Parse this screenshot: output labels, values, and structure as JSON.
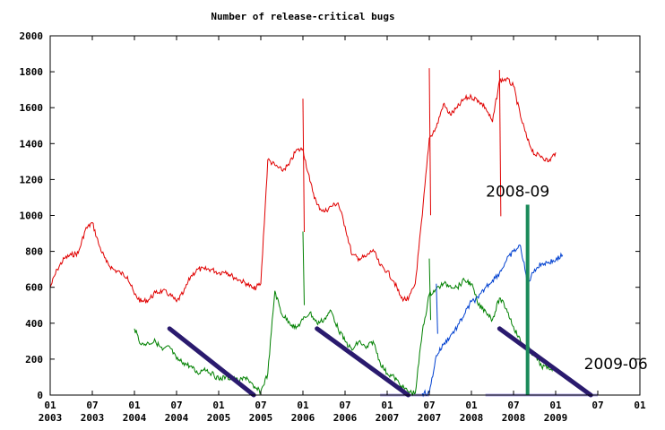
{
  "chart_data": {
    "type": "line",
    "title": "Number of release-critical bugs",
    "ylim": [
      0,
      2000
    ],
    "yticks": [
      0,
      200,
      400,
      600,
      800,
      1000,
      1200,
      1400,
      1600,
      1800,
      2000
    ],
    "xlim": [
      "2003-01",
      "2010-01"
    ],
    "xticks": [
      {
        "month": "01",
        "year": "2003",
        "date": "2003-01"
      },
      {
        "month": "07",
        "year": "2003",
        "date": "2003-07"
      },
      {
        "month": "01",
        "year": "2004",
        "date": "2004-01"
      },
      {
        "month": "07",
        "year": "2004",
        "date": "2004-07"
      },
      {
        "month": "01",
        "year": "2005",
        "date": "2005-01"
      },
      {
        "month": "07",
        "year": "2005",
        "date": "2005-07"
      },
      {
        "month": "01",
        "year": "2006",
        "date": "2006-01"
      },
      {
        "month": "07",
        "year": "2006",
        "date": "2006-07"
      },
      {
        "month": "01",
        "year": "2007",
        "date": "2007-01"
      },
      {
        "month": "07",
        "year": "2007",
        "date": "2007-07"
      },
      {
        "month": "01",
        "year": "2008",
        "date": "2008-01"
      },
      {
        "month": "07",
        "year": "2008",
        "date": "2008-07"
      },
      {
        "month": "01",
        "year": "2009",
        "date": "2009-01"
      },
      {
        "month": "07",
        "year": "",
        "date": "2009-07"
      },
      {
        "month": "01",
        "year": "",
        "date": "2010-01"
      }
    ],
    "grid": false,
    "series": [
      {
        "color": "#e00000",
        "points": [
          [
            "2003-01",
            600
          ],
          [
            "2003-02",
            700
          ],
          [
            "2003-03",
            760
          ],
          [
            "2003-04",
            780
          ],
          [
            "2003-05",
            790
          ],
          [
            "2003-06",
            920
          ],
          [
            "2003-07",
            960
          ],
          [
            "2003-08",
            830
          ],
          [
            "2003-09",
            740
          ],
          [
            "2003-10",
            700
          ],
          [
            "2003-11",
            680
          ],
          [
            "2003-12",
            660
          ],
          [
            "2004-01",
            560
          ],
          [
            "2004-02",
            520
          ],
          [
            "2004-03",
            530
          ],
          [
            "2004-04",
            570
          ],
          [
            "2004-05",
            580
          ],
          [
            "2004-06",
            560
          ],
          [
            "2004-07",
            520
          ],
          [
            "2004-08",
            570
          ],
          [
            "2004-09",
            660
          ],
          [
            "2004-10",
            700
          ],
          [
            "2004-11",
            700
          ],
          [
            "2004-12",
            700
          ],
          [
            "2005-01",
            680
          ],
          [
            "2005-02",
            690
          ],
          [
            "2005-03",
            660
          ],
          [
            "2005-04",
            640
          ],
          [
            "2005-05",
            620
          ],
          [
            "2005-06",
            590
          ],
          [
            "2005-07",
            620
          ],
          [
            "2005-08",
            1310
          ],
          [
            "2005-09",
            1280
          ],
          [
            "2005-10",
            1250
          ],
          [
            "2005-11",
            1280
          ],
          [
            "2005-12",
            1360
          ],
          [
            "2006-01",
            1370
          ],
          [
            "2006-02",
            1190
          ],
          [
            "2006-03",
            1060
          ],
          [
            "2006-04",
            1020
          ],
          [
            "2006-05",
            1050
          ],
          [
            "2006-06",
            1070
          ],
          [
            "2006-07",
            940
          ],
          [
            "2006-08",
            780
          ],
          [
            "2006-09",
            760
          ],
          [
            "2006-10",
            770
          ],
          [
            "2006-11",
            810
          ],
          [
            "2006-12",
            720
          ],
          [
            "2007-01",
            690
          ],
          [
            "2007-02",
            630
          ],
          [
            "2007-03",
            540
          ],
          [
            "2007-04",
            530
          ],
          [
            "2007-05",
            620
          ],
          [
            "2007-06",
            1000
          ],
          [
            "2007-07",
            1430
          ],
          [
            "2007-08",
            1490
          ],
          [
            "2007-09",
            1620
          ],
          [
            "2007-10",
            1560
          ],
          [
            "2007-11",
            1600
          ],
          [
            "2007-12",
            1650
          ],
          [
            "2008-01",
            1660
          ],
          [
            "2008-02",
            1640
          ],
          [
            "2008-03",
            1600
          ],
          [
            "2008-04",
            1520
          ],
          [
            "2008-05",
            1750
          ],
          [
            "2008-06",
            1760
          ],
          [
            "2008-07",
            1720
          ],
          [
            "2008-08",
            1550
          ],
          [
            "2008-09",
            1420
          ],
          [
            "2008-10",
            1340
          ],
          [
            "2008-11",
            1330
          ],
          [
            "2008-12",
            1300
          ],
          [
            "2009-01",
            1350
          ]
        ],
        "spikes": [
          [
            "2006-01",
            1650
          ],
          [
            "2007-07",
            1820
          ],
          [
            "2008-05",
            1810
          ]
        ]
      },
      {
        "color": "#008000",
        "points": [
          [
            "2004-01",
            370
          ],
          [
            "2004-02",
            280
          ],
          [
            "2004-03",
            290
          ],
          [
            "2004-04",
            300
          ],
          [
            "2004-05",
            250
          ],
          [
            "2004-06",
            270
          ],
          [
            "2004-07",
            200
          ],
          [
            "2004-08",
            180
          ],
          [
            "2004-09",
            160
          ],
          [
            "2004-10",
            120
          ],
          [
            "2004-11",
            150
          ],
          [
            "2004-12",
            120
          ],
          [
            "2005-01",
            90
          ],
          [
            "2005-02",
            100
          ],
          [
            "2005-03",
            90
          ],
          [
            "2005-04",
            80
          ],
          [
            "2005-05",
            100
          ],
          [
            "2005-06",
            40
          ],
          [
            "2005-07",
            20
          ],
          [
            "2005-08",
            120
          ],
          [
            "2005-09",
            580
          ],
          [
            "2005-10",
            450
          ],
          [
            "2005-11",
            410
          ],
          [
            "2005-12",
            370
          ],
          [
            "2006-01",
            420
          ],
          [
            "2006-02",
            460
          ],
          [
            "2006-03",
            400
          ],
          [
            "2006-04",
            420
          ],
          [
            "2006-05",
            470
          ],
          [
            "2006-06",
            370
          ],
          [
            "2006-07",
            300
          ],
          [
            "2006-08",
            250
          ],
          [
            "2006-09",
            300
          ],
          [
            "2006-10",
            260
          ],
          [
            "2006-11",
            300
          ],
          [
            "2006-12",
            180
          ],
          [
            "2007-01",
            120
          ],
          [
            "2007-02",
            100
          ],
          [
            "2007-03",
            50
          ],
          [
            "2007-04",
            20
          ],
          [
            "2007-05",
            10
          ],
          [
            "2007-06",
            350
          ],
          [
            "2007-07",
            560
          ],
          [
            "2007-08",
            590
          ],
          [
            "2007-09",
            620
          ],
          [
            "2007-10",
            610
          ],
          [
            "2007-11",
            600
          ],
          [
            "2007-12",
            640
          ],
          [
            "2008-01",
            620
          ],
          [
            "2008-02",
            500
          ],
          [
            "2008-03",
            470
          ],
          [
            "2008-04",
            420
          ],
          [
            "2008-05",
            540
          ],
          [
            "2008-06",
            480
          ],
          [
            "2008-07",
            380
          ],
          [
            "2008-08",
            300
          ],
          [
            "2008-09",
            260
          ],
          [
            "2008-10",
            220
          ],
          [
            "2008-11",
            160
          ],
          [
            "2008-12",
            150
          ],
          [
            "2009-01",
            150
          ]
        ],
        "spikes": [
          [
            "2006-01",
            910
          ],
          [
            "2007-07",
            760
          ]
        ]
      },
      {
        "color": "#0040d0",
        "points": [
          [
            "2007-06",
            10
          ],
          [
            "2007-07",
            10
          ],
          [
            "2007-08",
            220
          ],
          [
            "2007-09",
            280
          ],
          [
            "2007-10",
            330
          ],
          [
            "2007-11",
            380
          ],
          [
            "2007-12",
            450
          ],
          [
            "2008-01",
            520
          ],
          [
            "2008-02",
            540
          ],
          [
            "2008-03",
            600
          ],
          [
            "2008-04",
            640
          ],
          [
            "2008-05",
            680
          ],
          [
            "2008-06",
            750
          ],
          [
            "2008-07",
            800
          ],
          [
            "2008-08",
            830
          ],
          [
            "2008-09",
            620
          ],
          [
            "2008-10",
            700
          ],
          [
            "2008-11",
            730
          ],
          [
            "2008-12",
            740
          ],
          [
            "2009-01",
            750
          ],
          [
            "2009-02",
            780
          ]
        ],
        "spikes": [
          [
            "2007-08",
            620
          ]
        ]
      }
    ],
    "release_lines": [
      {
        "start": [
          "2004-06",
          370
        ],
        "end": [
          "2005-06",
          0
        ]
      },
      {
        "start": [
          "2006-03",
          370
        ],
        "end": [
          "2007-04",
          0
        ]
      },
      {
        "start": [
          "2008-05",
          370
        ],
        "end": [
          "2009-06",
          0
        ]
      }
    ],
    "freeze_markers": [
      {
        "label": "2008-09",
        "date": "2008-09",
        "height": 1060
      },
      {
        "label": "2009-06",
        "date": "2009-06",
        "height": 0
      }
    ],
    "baseline_segments": [
      [
        "2006-12",
        "2007-07"
      ],
      [
        "2008-03",
        "2009-07"
      ]
    ]
  }
}
